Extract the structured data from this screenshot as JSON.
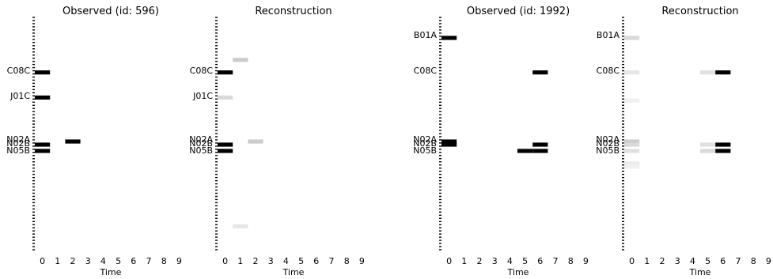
{
  "chart_data": [
    {
      "type": "heatmap",
      "title": "Observed (id: 596)",
      "xlabel": "Time",
      "x_ticks": [
        "0",
        "1",
        "2",
        "3",
        "4",
        "5",
        "6",
        "7",
        "8",
        "9"
      ],
      "y_labels": [
        "C08C",
        "J01C",
        "N02A",
        "N02B",
        "N05B"
      ],
      "cells": [
        {
          "row": "C08C",
          "t": 0,
          "value": 1.0
        },
        {
          "row": "J01C",
          "t": 0,
          "value": 1.0
        },
        {
          "row": "N02A",
          "t": 2,
          "value": 1.0
        },
        {
          "row": "N02B",
          "t": 0,
          "value": 1.0
        },
        {
          "row": "N05B",
          "t": 0,
          "value": 1.0
        }
      ]
    },
    {
      "type": "heatmap",
      "title": "Reconstruction",
      "xlabel": "Time",
      "x_ticks": [
        "0",
        "1",
        "2",
        "3",
        "4",
        "5",
        "6",
        "7",
        "8",
        "9"
      ],
      "y_labels": [
        "C08C",
        "J01C",
        "N02A",
        "N02B",
        "N05B"
      ],
      "cells": [
        {
          "row": "C08C",
          "t": 0,
          "value": 1.0
        },
        {
          "row": "J01C",
          "t": 0,
          "value": 0.15
        },
        {
          "row": "N02A",
          "t": 2,
          "value": 0.2
        },
        {
          "row": "N02B",
          "t": 0,
          "value": 1.0
        },
        {
          "row": "N05B",
          "t": 0,
          "value": 1.0
        }
      ],
      "unlabeled_cells": [
        {
          "row_index": 13,
          "t": 1,
          "value": 0.2
        },
        {
          "row_index": 66,
          "t": 1,
          "value": 0.1
        }
      ]
    },
    {
      "type": "heatmap",
      "title": "Observed (id: 1992)",
      "xlabel": "Time",
      "x_ticks": [
        "0",
        "1",
        "2",
        "3",
        "4",
        "5",
        "6",
        "7",
        "8",
        "9"
      ],
      "y_labels": [
        "B01A",
        "C08C",
        "N02A",
        "N02B",
        "N05B"
      ],
      "cells": [
        {
          "row": "B01A",
          "t": 0,
          "value": 1.0
        },
        {
          "row": "C08C",
          "t": 6,
          "value": 1.0
        },
        {
          "row": "N02A",
          "t": 0,
          "value": 1.0
        },
        {
          "row": "N02B",
          "t": 0,
          "value": 1.0
        },
        {
          "row": "N02B",
          "t": 6,
          "value": 1.0
        },
        {
          "row": "N05B",
          "t": 5,
          "value": 1.0
        },
        {
          "row": "N05B",
          "t": 6,
          "value": 1.0
        }
      ]
    },
    {
      "type": "heatmap",
      "title": "Reconstruction",
      "xlabel": "Time",
      "x_ticks": [
        "0",
        "1",
        "2",
        "3",
        "4",
        "5",
        "6",
        "7",
        "8",
        "9"
      ],
      "y_labels": [
        "B01A",
        "C08C",
        "N02A",
        "N02B",
        "N05B"
      ],
      "cells": [
        {
          "row": "B01A",
          "t": 0,
          "value": 0.15
        },
        {
          "row": "C08C",
          "t": 0,
          "value": 0.1
        },
        {
          "row": "C08C",
          "t": 5,
          "value": 0.12
        },
        {
          "row": "C08C",
          "t": 6,
          "value": 1.0
        },
        {
          "row": "N02A",
          "t": 0,
          "value": 0.2
        },
        {
          "row": "N02B",
          "t": 0,
          "value": 0.15
        },
        {
          "row": "N02B",
          "t": 5,
          "value": 0.12
        },
        {
          "row": "N02B",
          "t": 6,
          "value": 1.0
        },
        {
          "row": "N05B",
          "t": 0,
          "value": 0.12
        },
        {
          "row": "N05B",
          "t": 5,
          "value": 0.15
        },
        {
          "row": "N05B",
          "t": 6,
          "value": 1.0
        }
      ],
      "unlabeled_cells": [
        {
          "row_index": 26,
          "t": 0,
          "value": 0.06
        },
        {
          "row_index": 46,
          "t": 0,
          "value": 0.08
        },
        {
          "row_index": 47,
          "t": 0,
          "value": 0.06
        }
      ]
    }
  ]
}
